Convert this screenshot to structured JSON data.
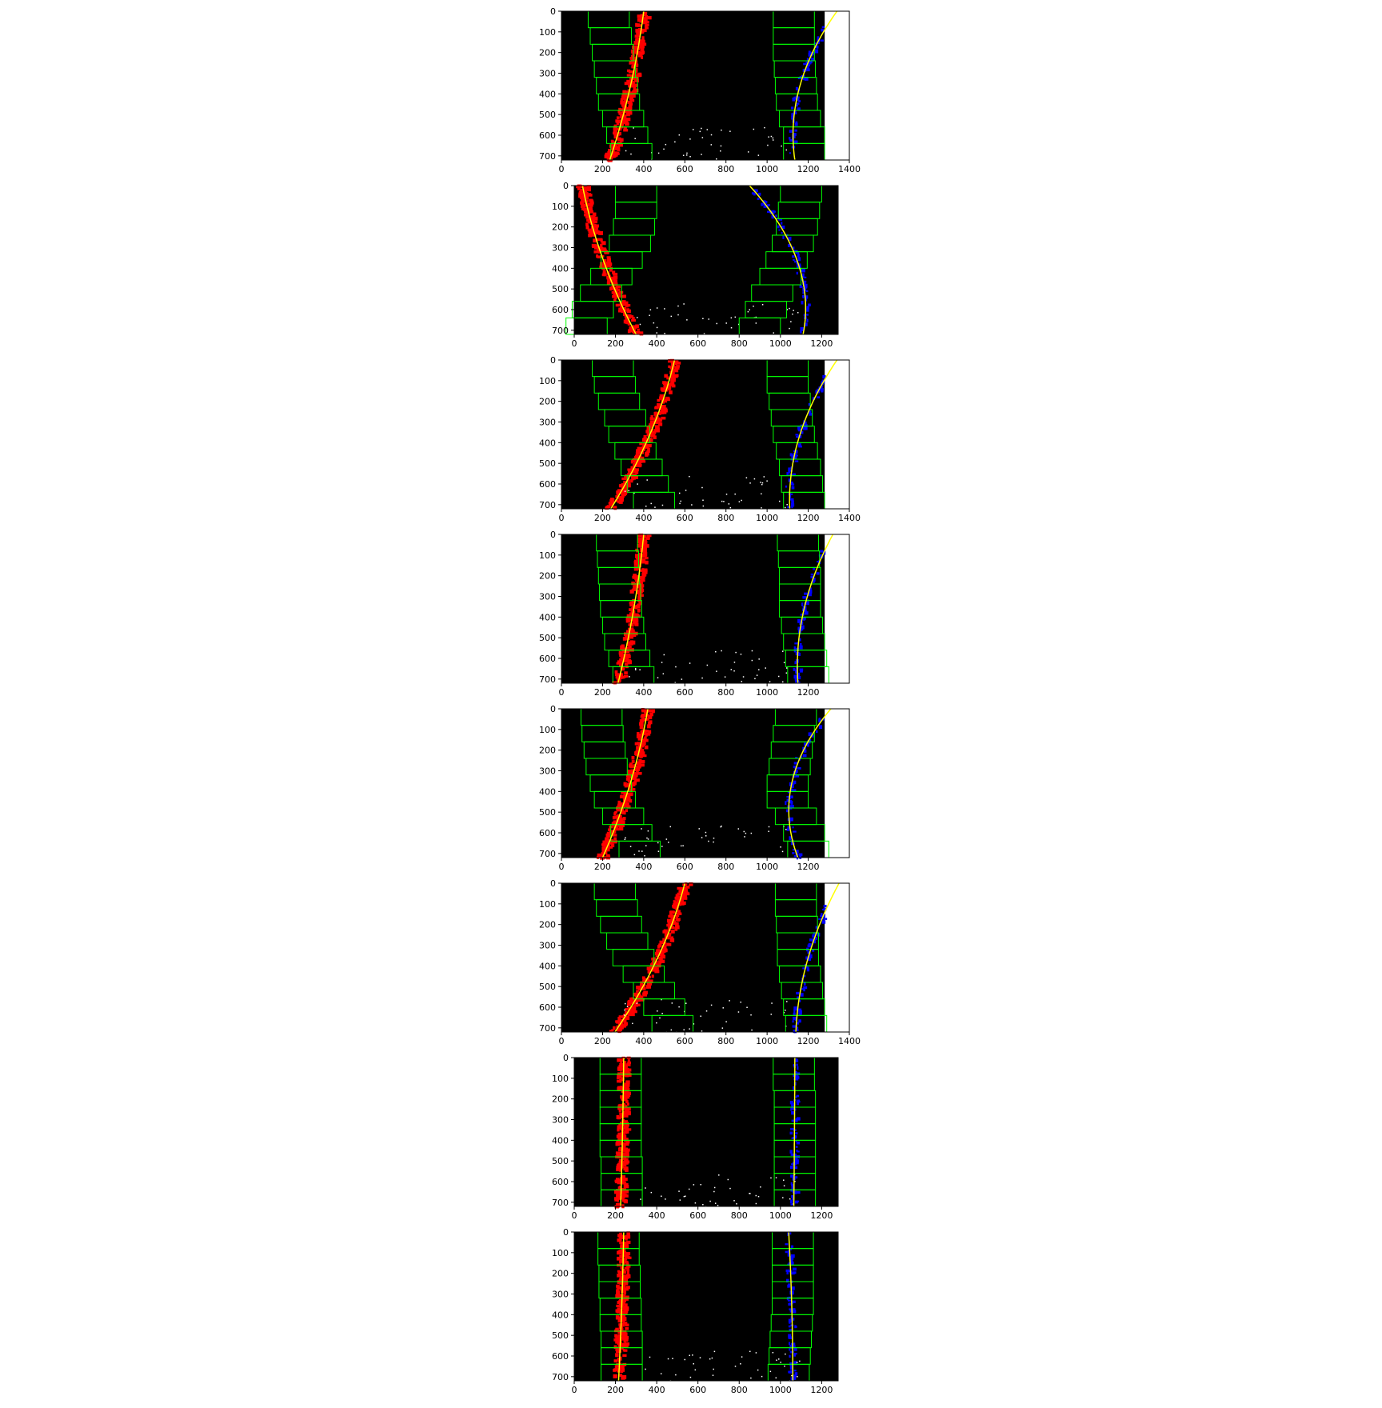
{
  "chart_data": [
    {
      "type": "scatter",
      "title": "",
      "xlim": [
        0,
        1400
      ],
      "ylim": [
        720,
        0
      ],
      "xticks": [
        "0",
        "200",
        "400",
        "600",
        "800",
        "1000",
        "1200",
        "1400"
      ],
      "yticks": [
        "0",
        "100",
        "200",
        "300",
        "400",
        "500",
        "600",
        "700"
      ],
      "image_width": 1280,
      "left_fit": {
        "x_top": 400,
        "x_bottom": 235
      },
      "right_fit": {
        "x_top": 1340,
        "x_mid": 1160,
        "x_bottom": 1135
      },
      "left_windows_x": [
        340,
        320,
        300,
        280,
        270,
        260,
        250,
        240,
        230
      ],
      "right_windows_x": [
        1180,
        1180,
        1160,
        1145,
        1140,
        1135,
        1130,
        1130,
        1130
      ]
    },
    {
      "type": "scatter",
      "title": "",
      "xlim": [
        0,
        1280
      ],
      "ylim": [
        720,
        0
      ],
      "xticks": [
        "0",
        "200",
        "400",
        "600",
        "800",
        "1000",
        "1200"
      ],
      "yticks": [
        "0",
        "100",
        "200",
        "300",
        "400",
        "500",
        "600",
        "700"
      ],
      "image_width": 1280,
      "left_fit": {
        "x_top": 40,
        "x_bottom": 300
      },
      "right_fit": {
        "x_top": 850,
        "x_mid": 1080,
        "x_bottom": 1110
      },
      "left_windows_x": [
        60,
        90,
        130,
        180,
        230,
        270,
        290,
        300,
        300
      ],
      "right_windows_x": [
        900,
        930,
        960,
        1000,
        1030,
        1060,
        1080,
        1090,
        1100
      ]
    },
    {
      "type": "scatter",
      "title": "",
      "xlim": [
        0,
        1400
      ],
      "ylim": [
        720,
        0
      ],
      "xticks": [
        "0",
        "200",
        "400",
        "600",
        "800",
        "1000",
        "1200",
        "1400"
      ],
      "yticks": [
        "0",
        "100",
        "200",
        "300",
        "400",
        "500",
        "600",
        "700"
      ],
      "image_width": 1280,
      "left_fit": {
        "x_top": 550,
        "x_bottom": 240
      },
      "right_fit": {
        "x_top": 1340,
        "x_mid": 1160,
        "x_bottom": 1110
      },
      "left_windows_x": [
        450,
        420,
        390,
        360,
        330,
        310,
        280,
        260,
        250
      ],
      "right_windows_x": [
        1180,
        1170,
        1160,
        1145,
        1130,
        1120,
        1110,
        1100,
        1100
      ]
    },
    {
      "type": "scatter",
      "title": "",
      "xlim": [
        0,
        1400
      ],
      "ylim": [
        720,
        0
      ],
      "xticks": [
        "0",
        "200",
        "400",
        "600",
        "800",
        "1000",
        "1200"
      ],
      "yticks": [
        "0",
        "100",
        "200",
        "300",
        "400",
        "500",
        "600",
        "700"
      ],
      "image_width": 1280,
      "left_fit": {
        "x_top": 400,
        "x_bottom": 275
      },
      "right_fit": {
        "x_top": 1320,
        "x_mid": 1180,
        "x_bottom": 1150
      },
      "left_windows_x": [
        350,
        330,
        310,
        300,
        290,
        285,
        280,
        275,
        270
      ],
      "right_windows_x": [
        1200,
        1190,
        1180,
        1170,
        1160,
        1160,
        1160,
        1155,
        1150
      ]
    },
    {
      "type": "scatter",
      "title": "",
      "xlim": [
        0,
        1400
      ],
      "ylim": [
        720,
        0
      ],
      "xticks": [
        "0",
        "200",
        "400",
        "600",
        "800",
        "1000",
        "1200"
      ],
      "yticks": [
        "0",
        "100",
        "200",
        "300",
        "400",
        "500",
        "600",
        "700"
      ],
      "image_width": 1280,
      "left_fit": {
        "x_top": 420,
        "x_bottom": 200
      },
      "right_fit": {
        "x_top": 1310,
        "x_mid": 1120,
        "x_bottom": 1150
      },
      "left_windows_x": [
        380,
        340,
        300,
        260,
        240,
        220,
        210,
        200,
        195
      ],
      "right_windows_x": [
        1200,
        1180,
        1140,
        1100,
        1100,
        1110,
        1120,
        1130,
        1140
      ]
    },
    {
      "type": "scatter",
      "title": "",
      "xlim": [
        0,
        1400
      ],
      "ylim": [
        720,
        0
      ],
      "xticks": [
        "0",
        "200",
        "400",
        "600",
        "800",
        "1000",
        "1200",
        "1400"
      ],
      "yticks": [
        "0",
        "100",
        "200",
        "300",
        "400",
        "500",
        "600",
        "700"
      ],
      "image_width": 1280,
      "left_fit": {
        "x_top": 600,
        "x_bottom": 260
      },
      "right_fit": {
        "x_top": 1350,
        "x_mid": 1200,
        "x_bottom": 1140
      },
      "left_windows_x": [
        540,
        500,
        450,
        400,
        350,
        320,
        290,
        270,
        260
      ],
      "right_windows_x": [
        1190,
        1180,
        1170,
        1160,
        1150,
        1150,
        1145,
        1140,
        1140
      ]
    },
    {
      "type": "scatter",
      "title": "",
      "xlim": [
        0,
        1280
      ],
      "ylim": [
        720,
        0
      ],
      "xticks": [
        "0",
        "200",
        "400",
        "600",
        "800",
        "1000",
        "1200"
      ],
      "yticks": [
        "0",
        "100",
        "200",
        "300",
        "400",
        "500",
        "600",
        "700"
      ],
      "image_width": 1280,
      "left_fit": {
        "x_top": 240,
        "x_bottom": 225
      },
      "right_fit": {
        "x_top": 1070,
        "x_mid": 1068,
        "x_bottom": 1065
      },
      "left_windows_x": [
        230,
        230,
        230,
        225,
        225,
        225,
        225,
        225,
        225
      ],
      "right_windows_x": [
        1070,
        1070,
        1070,
        1070,
        1070,
        1070,
        1070,
        1065,
        1065
      ]
    },
    {
      "type": "scatter",
      "title": "",
      "xlim": [
        0,
        1280
      ],
      "ylim": [
        720,
        0
      ],
      "xticks": [
        "0",
        "200",
        "400",
        "600",
        "800",
        "1000",
        "1200"
      ],
      "yticks": [
        "0",
        "100",
        "200",
        "300",
        "400",
        "500",
        "600",
        "700"
      ],
      "image_width": 1280,
      "left_fit": {
        "x_top": 240,
        "x_bottom": 215
      },
      "right_fit": {
        "x_top": 1040,
        "x_mid": 1055,
        "x_bottom": 1060
      },
      "left_windows_x": [
        230,
        230,
        230,
        225,
        225,
        220,
        220,
        215,
        215
      ],
      "right_windows_x": [
        1040,
        1045,
        1050,
        1055,
        1060,
        1060,
        1060,
        1060,
        1060
      ]
    }
  ]
}
